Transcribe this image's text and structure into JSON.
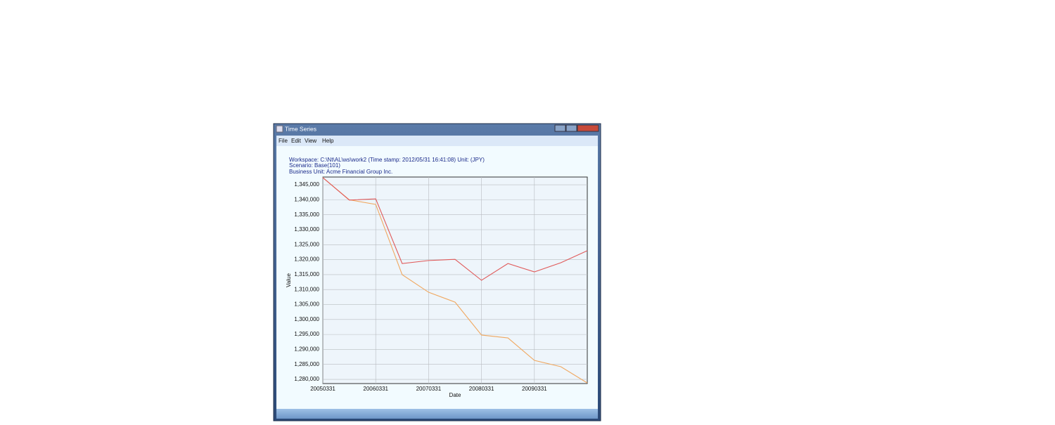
{
  "window": {
    "title": "Time Series",
    "menu": [
      "File",
      "Edit",
      "View",
      "Help"
    ]
  },
  "info": [
    "Workspace: C:\\Nt\\AL\\ws\\work2 (Time stamp: 2012/05/31 16:41:08) Unit: (JPY)",
    "Scenario: Base(101)",
    "Business Unit: Acme Financial Group Inc."
  ],
  "chart_data": {
    "type": "line",
    "x_label": "Date",
    "y_label": "Value",
    "categories": [
      "20050331",
      null,
      "20060331",
      null,
      "20070331",
      null,
      "20080331",
      null,
      "20090331",
      null,
      null
    ],
    "series": [
      {
        "color": "#e05a5a",
        "values": [
          1347400,
          1339900,
          1340300,
          1318700,
          1319700,
          1320100,
          1313100,
          1318700,
          1315900,
          1318970,
          1323000
        ]
      },
      {
        "color": "#f0a860",
        "values": [
          1347400,
          1340000,
          1338450,
          1314980,
          1309100,
          1305800,
          1294800,
          1293850,
          1286340,
          1284230,
          1278800
        ]
      }
    ],
    "ylim": [
      1278600,
      1347600
    ],
    "yticks": [
      {
        "value": 1280000,
        "label": "1,280,000"
      },
      {
        "value": 1285000,
        "label": "1,285,000"
      },
      {
        "value": 1290000,
        "label": "1,290,000"
      },
      {
        "value": 1295000,
        "label": "1,295,000"
      },
      {
        "value": 1300000,
        "label": "1,300,000"
      },
      {
        "value": 1305000,
        "label": "1,305,000"
      },
      {
        "value": 1310000,
        "label": "1,310,000"
      },
      {
        "value": 1315000,
        "label": "1,315,000"
      },
      {
        "value": 1320000,
        "label": "1,320,000"
      },
      {
        "value": 1325000,
        "label": "1,325,000"
      },
      {
        "value": 1330000,
        "label": "1,330,000"
      },
      {
        "value": 1335000,
        "label": "1,335,000"
      },
      {
        "value": 1340000,
        "label": "1,340,000"
      },
      {
        "value": 1345000,
        "label": "1,345,000"
      }
    ],
    "grid": true
  }
}
